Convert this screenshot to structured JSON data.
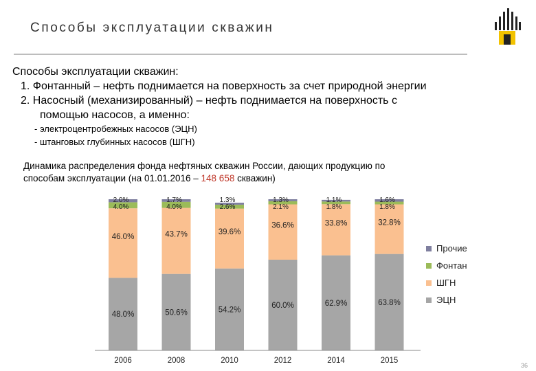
{
  "header": {
    "title": "Способы эксплуатации скважин"
  },
  "body": {
    "intro": "Способы эксплуатации скважин:",
    "item1": "1. Фонтанный – нефть поднимается на поверхность за счет природной энергии",
    "item2_line1": "2.  Насосный (механизированный) – нефть поднимается на поверхность с",
    "item2_line2": "помощью насосов, а именно:",
    "sub1": "- электроцентробежных насосов (ЭЦН)",
    "sub2": "- штанговых глубинных насосов (ШГН)"
  },
  "chart_title": {
    "line1": "Динамика распределения фонда нефтяных скважин России, дающих продукцию по",
    "line2_prefix": "способам эксплуатации (на 01.01.2016 – ",
    "line2_highlight": "148 658",
    "line2_suffix": " скважин)"
  },
  "chart_data": {
    "type": "bar",
    "stacked": true,
    "categories": [
      "2006",
      "2008",
      "2010",
      "2012",
      "2014",
      "2015"
    ],
    "series": [
      {
        "name": "ЭЦН",
        "color": "#a6a6a6",
        "values": [
          48.0,
          50.6,
          54.2,
          60.0,
          62.9,
          63.8
        ],
        "labels": [
          "48.0%",
          "50.6%",
          "54.2%",
          "60.0%",
          "62.9%",
          "63.8%"
        ]
      },
      {
        "name": "ШГН",
        "color": "#fac090",
        "values": [
          46.0,
          43.7,
          39.6,
          36.6,
          33.8,
          32.8
        ],
        "labels": [
          "46.0%",
          "43.7%",
          "39.6%",
          "36.6%",
          "33.8%",
          "32.8%"
        ]
      },
      {
        "name": "Фонтан",
        "color": "#9bbb59",
        "values": [
          4.0,
          4.0,
          2.6,
          2.1,
          1.8,
          1.8
        ],
        "labels": [
          "4.0%",
          "4.0%",
          "2.6%",
          "2.1%",
          "1.8%",
          "1.8%"
        ]
      },
      {
        "name": "Прочие",
        "color": "#7f7f9f",
        "values": [
          2.0,
          1.7,
          1.3,
          1.3,
          1.1,
          1.6
        ],
        "labels": [
          "2.0%",
          "1.7%",
          "1.3%",
          "1.3%",
          "1.1%",
          "1.6%"
        ]
      }
    ],
    "legend_order": [
      "Прочие",
      "Фонтан",
      "ШГН",
      "ЭЦН"
    ],
    "legend_position": "right",
    "ylim": [
      0,
      100
    ],
    "grid": false
  },
  "page_number": "36"
}
